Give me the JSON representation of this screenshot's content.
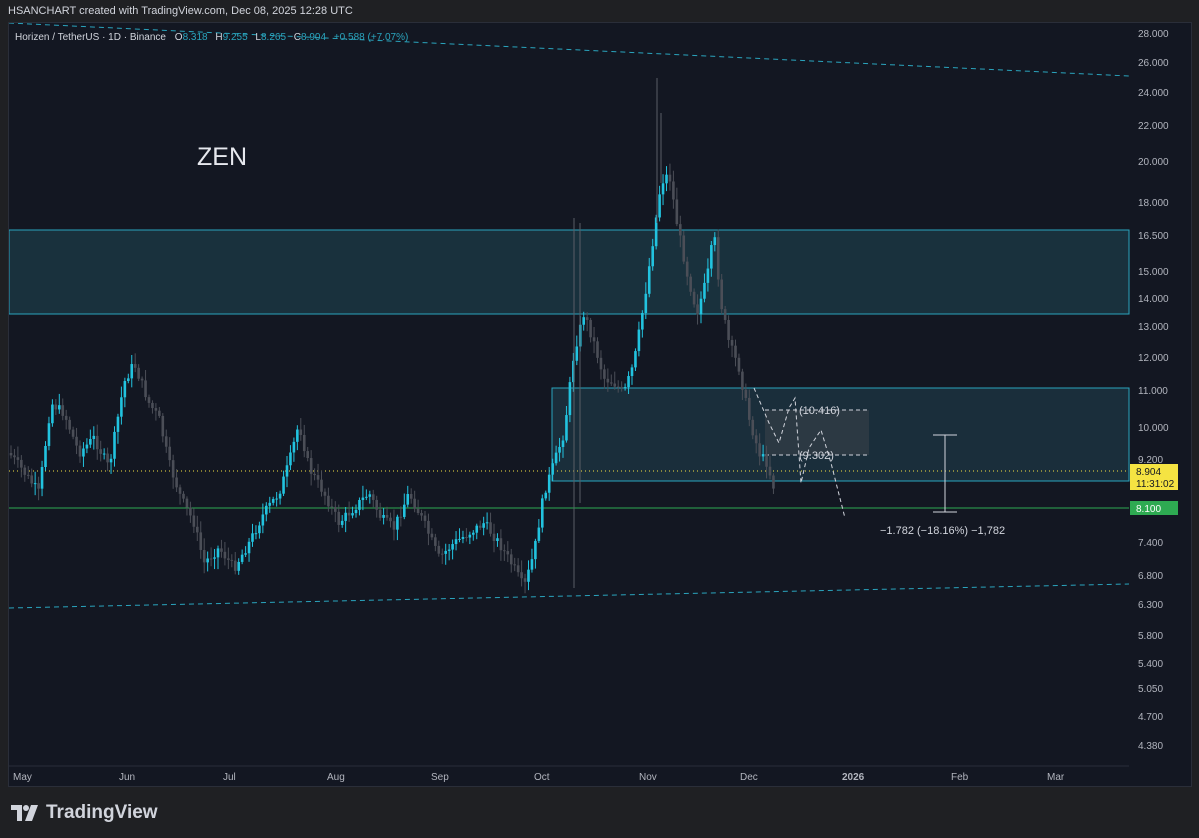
{
  "header": {
    "credit": "HSANCHART created with TradingView.com, Dec 08, 2025 12:28 UTC"
  },
  "legend": {
    "symbol": "Horizen / TetherUS · 1D · Binance",
    "o_label": "O",
    "o": "8.318",
    "h_label": "H",
    "h": "9.255",
    "l_label": "L",
    "l": "8.265",
    "c_label": "C",
    "c": "8.904",
    "change": "+0.588 (+7.07%)"
  },
  "ticker_label": "ZEN",
  "price_axis": [
    "28.000",
    "26.000",
    "24.000",
    "22.000",
    "20.000",
    "18.000",
    "16.500",
    "15.000",
    "14.000",
    "13.000",
    "12.000",
    "11.000",
    "10.000",
    "9.200",
    "8.900",
    "8.100",
    "7.400",
    "6.800",
    "6.300",
    "5.800",
    "5.400",
    "5.050",
    "4.700",
    "4.380"
  ],
  "time_axis": [
    "May",
    "Jun",
    "Jul",
    "Aug",
    "Sep",
    "Oct",
    "Nov",
    "Dec",
    "2026",
    "Feb",
    "Mar"
  ],
  "current_price": {
    "value": "8.904",
    "countdown": "11:31:02",
    "color": "#f5e342"
  },
  "support_price": {
    "value": "8.100",
    "color": "#2eaa52"
  },
  "annotations": {
    "upper_target": "(10.416)",
    "lower_target": "(9.302)",
    "measure": "−1.782 (−18.16%) −1,782"
  },
  "colors": {
    "up": "#22c3df",
    "down": "#4b4e57",
    "zone": "#2196a8",
    "background": "#131722"
  },
  "footer": {
    "brand": "TradingView",
    "logo_icon": "tradingview-logo-icon"
  }
}
